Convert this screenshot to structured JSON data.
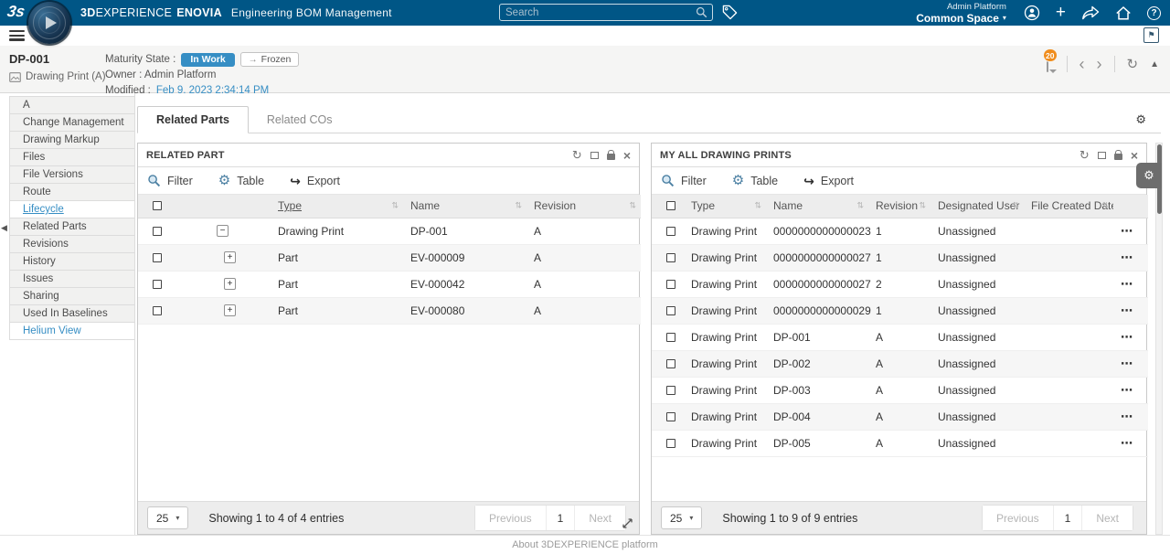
{
  "icons": {
    "sort": "⇅",
    "refresh": "↻",
    "close": "×",
    "gear": "⚙",
    "export": "↪",
    "ellipsis": "⋯",
    "caret_down": "▾",
    "chevron_left": "‹",
    "chevron_right": "›",
    "collapse_up": "▲",
    "collapse_left": "◀",
    "minus": "−",
    "plus": "+",
    "add": "+",
    "help": "?",
    "promote": "→",
    "flag": "⚑"
  },
  "accent_colors": {
    "primary_blue": "#005686",
    "link_blue": "#368ec4",
    "badge_orange": "#f08d1d"
  },
  "topbar": {
    "logo": "3s",
    "brand": {
      "bold": "3D",
      "light": "EXPERIENCE",
      "product": "ENOVIA"
    },
    "app_name": "Engineering BOM Management",
    "search": {
      "placeholder": "Search"
    },
    "user": {
      "line1": "Admin Platform",
      "line2": "Common Space"
    }
  },
  "header": {
    "title": "DP-001",
    "type_revision": "Drawing Print (A)",
    "maturity_label": "Maturity State :",
    "current_state": "In Work",
    "next_state": "Frozen",
    "owner": "Owner : Admin Platform",
    "modified_label": "Modified :",
    "modified_date": "Feb 9, 2023 2:34:14 PM",
    "comments_count": "20"
  },
  "sidebar": {
    "items": [
      {
        "label": "A"
      },
      {
        "label": "Change Management"
      },
      {
        "label": "Drawing Markup"
      },
      {
        "label": "Files"
      },
      {
        "label": "File Versions"
      },
      {
        "label": "Route"
      },
      {
        "label": "Lifecycle",
        "selected": true
      },
      {
        "label": "Related Parts"
      },
      {
        "label": "Revisions"
      },
      {
        "label": "History"
      },
      {
        "label": "Issues"
      },
      {
        "label": "Sharing"
      },
      {
        "label": "Used In Baselines"
      },
      {
        "label": "Helium View",
        "accent": true
      }
    ]
  },
  "tabs": {
    "items": [
      {
        "label": "Related Parts",
        "active": true
      },
      {
        "label": "Related COs",
        "active": false
      }
    ]
  },
  "toolbar": {
    "filter": "Filter",
    "table": "Table",
    "export": "Export"
  },
  "left_panel": {
    "title": "RELATED PART",
    "table": {
      "columns": [
        {
          "label": "Type",
          "sorted": true
        },
        {
          "label": "Name"
        },
        {
          "label": "Revision"
        }
      ],
      "rows": [
        {
          "expander": "minus",
          "indent": 0,
          "cells": [
            "Drawing Print",
            "DP-001",
            "A"
          ]
        },
        {
          "expander": "plus",
          "indent": 1,
          "cells": [
            "Part",
            "EV-000009",
            "A"
          ]
        },
        {
          "expander": "plus",
          "indent": 1,
          "cells": [
            "Part",
            "EV-000042",
            "A"
          ]
        },
        {
          "expander": "plus",
          "indent": 1,
          "cells": [
            "Part",
            "EV-000080",
            "A"
          ]
        }
      ]
    },
    "pagination": {
      "page_size": "25",
      "info": "Showing 1 to 4 of 4 entries",
      "previous": "Previous",
      "page": "1",
      "next": "Next"
    }
  },
  "right_panel": {
    "title": "MY ALL DRAWING PRINTS",
    "table": {
      "columns": [
        {
          "label": "Type"
        },
        {
          "label": "Name"
        },
        {
          "label": "Revision"
        },
        {
          "label": "Designated User"
        },
        {
          "label": "File Created Date"
        }
      ],
      "rows": [
        {
          "cells": [
            "Drawing Print",
            "0000000000000023",
            "1",
            "Unassigned",
            ""
          ]
        },
        {
          "cells": [
            "Drawing Print",
            "0000000000000027",
            "1",
            "Unassigned",
            ""
          ]
        },
        {
          "cells": [
            "Drawing Print",
            "0000000000000027",
            "2",
            "Unassigned",
            ""
          ]
        },
        {
          "cells": [
            "Drawing Print",
            "0000000000000029",
            "1",
            "Unassigned",
            ""
          ]
        },
        {
          "cells": [
            "Drawing Print",
            "DP-001",
            "A",
            "Unassigned",
            ""
          ]
        },
        {
          "cells": [
            "Drawing Print",
            "DP-002",
            "A",
            "Unassigned",
            ""
          ]
        },
        {
          "cells": [
            "Drawing Print",
            "DP-003",
            "A",
            "Unassigned",
            ""
          ]
        },
        {
          "cells": [
            "Drawing Print",
            "DP-004",
            "A",
            "Unassigned",
            ""
          ]
        },
        {
          "cells": [
            "Drawing Print",
            "DP-005",
            "A",
            "Unassigned",
            ""
          ]
        }
      ]
    },
    "pagination": {
      "page_size": "25",
      "info": "Showing 1 to 9 of 9 entries",
      "previous": "Previous",
      "page": "1",
      "next": "Next"
    }
  },
  "footer": {
    "about": "About 3DEXPERIENCE platform"
  }
}
